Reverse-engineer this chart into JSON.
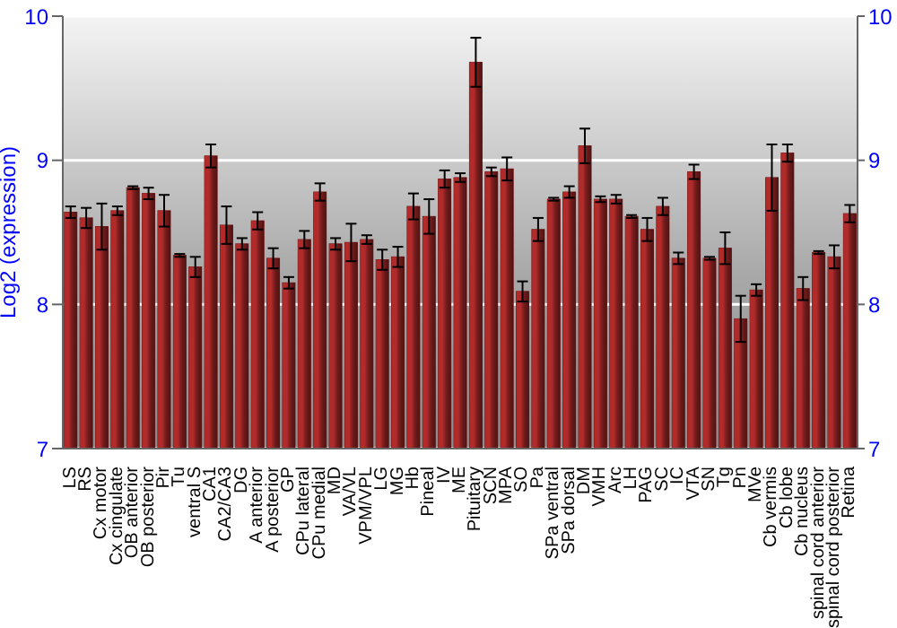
{
  "chart_data": {
    "type": "bar",
    "ylabel": "Log2 (expression)",
    "categories": [
      "LS",
      "RS",
      "Cx motor",
      "Cx cingulate",
      "OB anterior",
      "OB posterior",
      "Pir",
      "Tu",
      "ventral S",
      "CA1",
      "CA2/CA3",
      "DG",
      "A anterior",
      "A posterior",
      "GP",
      "CPu lateral",
      "CPu medial",
      "MD",
      "VA/VL",
      "VPM/VPL",
      "LG",
      "MG",
      "Hb",
      "Pineal",
      "IV",
      "ME",
      "Pituitary",
      "SCN",
      "MPA",
      "SO",
      "Pa",
      "SPa ventral",
      "SPa dorsal",
      "DM",
      "VMH",
      "Arc",
      "LH",
      "PAG",
      "SC",
      "IC",
      "VTA",
      "SN",
      "Tg",
      "Pn",
      "MVe",
      "Cb vermis",
      "Cb lobe",
      "Cb nucleus",
      "spinal cord anterior",
      "spinal cord posterior",
      "Retina"
    ],
    "values": [
      8.64,
      8.6,
      8.54,
      8.65,
      8.81,
      8.77,
      8.65,
      8.34,
      8.26,
      9.03,
      8.55,
      8.42,
      8.58,
      8.32,
      8.15,
      8.45,
      8.78,
      8.42,
      8.43,
      8.45,
      8.31,
      8.33,
      8.68,
      8.61,
      8.87,
      8.88,
      9.68,
      8.92,
      8.94,
      8.09,
      8.52,
      8.73,
      8.78,
      9.1,
      8.73,
      8.73,
      8.61,
      8.52,
      8.68,
      8.32,
      8.92,
      8.32,
      8.39,
      7.9,
      8.1,
      8.88,
      9.05,
      8.11,
      8.36,
      8.33,
      8.63
    ],
    "errors": [
      0.04,
      0.07,
      0.16,
      0.03,
      0.01,
      0.04,
      0.11,
      0.01,
      0.07,
      0.08,
      0.13,
      0.04,
      0.06,
      0.07,
      0.04,
      0.06,
      0.06,
      0.04,
      0.13,
      0.03,
      0.07,
      0.07,
      0.09,
      0.12,
      0.06,
      0.03,
      0.17,
      0.03,
      0.08,
      0.07,
      0.08,
      0.01,
      0.04,
      0.12,
      0.02,
      0.03,
      0.01,
      0.08,
      0.06,
      0.04,
      0.05,
      0.01,
      0.11,
      0.16,
      0.04,
      0.23,
      0.06,
      0.08,
      0.01,
      0.08,
      0.06
    ],
    "color": "#b22b2b",
    "ylim": [
      7,
      10
    ],
    "yticks": [
      7,
      8,
      9,
      10
    ],
    "y2lim": [
      7,
      10
    ],
    "y2ticks": [
      7,
      8,
      9,
      10
    ],
    "grid": "y"
  }
}
